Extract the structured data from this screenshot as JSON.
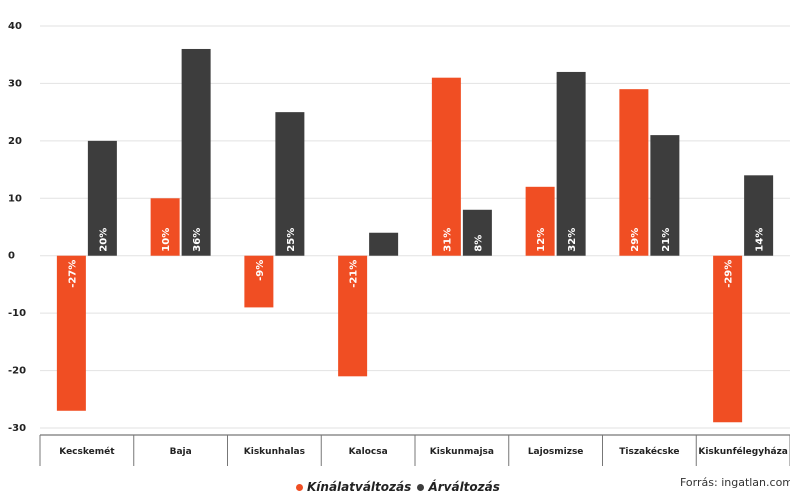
{
  "chart_data": {
    "type": "bar",
    "categories": [
      "Kecskemét",
      "Baja",
      "Kiskunhalas",
      "Kalocsa",
      "Kiskunmajsa",
      "Lajosmizse",
      "Tiszakécske",
      "Kiskunfélegyháza"
    ],
    "series": [
      {
        "name": "Kínálatváltozás",
        "color": "#f04e23",
        "values": [
          -27,
          10,
          -9,
          -21,
          31,
          12,
          29,
          -29
        ],
        "labels": [
          "-27%",
          "10%",
          "-9%",
          "-21%",
          "31%",
          "12%",
          "29%",
          "-29%"
        ]
      },
      {
        "name": "Árváltozás",
        "color": "#3d3d3d",
        "values": [
          20,
          36,
          25,
          4,
          8,
          32,
          21,
          14
        ],
        "labels": [
          "20%",
          "36%",
          "25%",
          "",
          "8%",
          "32%",
          "21%",
          "14%"
        ]
      }
    ],
    "ylim": [
      -30,
      40
    ],
    "yticks": [
      40,
      30,
      20,
      10,
      0,
      -10,
      -20,
      -30
    ],
    "grid": true,
    "legend_position": "bottom"
  },
  "source": "Forrás: ingatlan.com"
}
